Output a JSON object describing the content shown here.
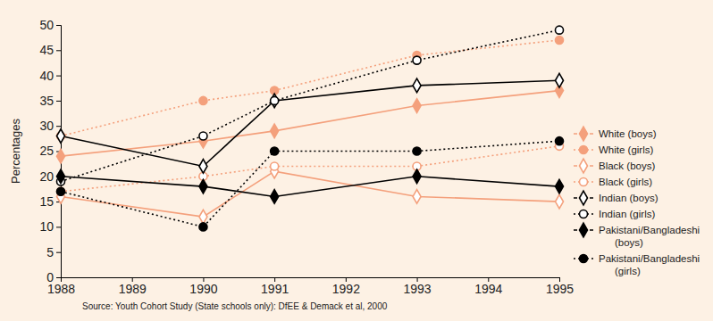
{
  "chart_data": {
    "type": "line",
    "y_label": "Percentages",
    "source": "Source: Youth Cohort Study (State schools only): DfEE & Demack et al, 2000",
    "x": [
      1988,
      1990,
      1991,
      1993,
      1995
    ],
    "xlim": [
      1988,
      1995
    ],
    "xticks": [
      1988,
      1989,
      1990,
      1991,
      1992,
      1993,
      1994,
      1995
    ],
    "ylim": [
      0,
      50
    ],
    "yticks": [
      0,
      5,
      10,
      15,
      20,
      25,
      30,
      35,
      40,
      45,
      50
    ],
    "grid": false,
    "legend": "right",
    "series": [
      {
        "name": "White (boys)",
        "color": "#f4a07c",
        "marker": "diamond",
        "line_style": "solid",
        "values": [
          24,
          27,
          29,
          34,
          37
        ]
      },
      {
        "name": "White (girls)",
        "color": "#f4a07c",
        "marker": "circle",
        "line_style": "dotted",
        "values": [
          28,
          35,
          37,
          44,
          47
        ]
      },
      {
        "name": "Black (boys)",
        "color": "#f4a07c",
        "marker": "diamond-open",
        "line_style": "solid",
        "values": [
          16,
          12,
          21,
          16,
          15
        ]
      },
      {
        "name": "Black (girls)",
        "color": "#f4a07c",
        "marker": "circle-open",
        "line_style": "dotted",
        "values": [
          17,
          20,
          22,
          22,
          26
        ]
      },
      {
        "name": "Indian (boys)",
        "color": "#000000",
        "marker": "diamond-open",
        "line_style": "solid",
        "values": [
          28,
          22,
          35,
          38,
          39
        ]
      },
      {
        "name": "Indian (girls)",
        "color": "#000000",
        "marker": "circle-open",
        "line_style": "dotted",
        "values": [
          19,
          28,
          35,
          43,
          49
        ]
      },
      {
        "name": "Pakistani/Bangladeshi (boys)",
        "color": "#000000",
        "marker": "diamond",
        "line_style": "solid",
        "values": [
          20,
          18,
          16,
          20,
          18
        ]
      },
      {
        "name": "Pakistani/Bangladeshi (girls)",
        "color": "#000000",
        "marker": "circle",
        "line_style": "dotted",
        "values": [
          17,
          10,
          25,
          25,
          27
        ]
      }
    ]
  }
}
